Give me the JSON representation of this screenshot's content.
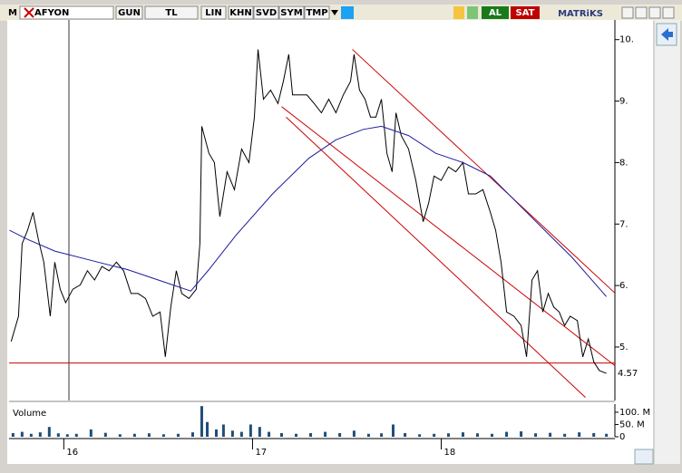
{
  "toolbar": {
    "logo": "M",
    "symbol": "AFYON",
    "buttons": [
      "GUN",
      "TL",
      "LIN",
      "KHN",
      "SVD",
      "SYM",
      "TMP"
    ],
    "buy": "AL",
    "sell": "SAT",
    "brand": "MATRiKS"
  },
  "chart_data": [
    {
      "type": "line",
      "series": [
        {
          "color": "#000000",
          "x": [
            2015.721,
            2015.76,
            2015.779,
            2015.808,
            2015.837,
            2015.865,
            2015.894,
            2015.928,
            2015.952,
            2015.981,
            2016.01,
            2016.048,
            2016.087,
            2016.125,
            2016.163,
            2016.202,
            2016.24,
            2016.279,
            2016.317,
            2016.356,
            2016.394,
            2016.433,
            2016.471,
            2016.51,
            2016.538,
            2016.567,
            2016.596,
            2016.625,
            2016.663,
            2016.702,
            2016.721,
            2016.731,
            2016.769,
            2016.798,
            2016.827,
            2016.865,
            2016.904,
            2016.942,
            2016.981,
            2017.01,
            2017.029,
            2017.058,
            2017.096,
            2017.135,
            2017.163,
            2017.192,
            2017.212,
            2017.25,
            2017.288,
            2017.327,
            2017.365,
            2017.404,
            2017.442,
            2017.481,
            2017.519,
            2017.538,
            2017.567,
            2017.596,
            2017.625,
            2017.654,
            2017.683,
            2017.712,
            2017.74,
            2017.76,
            2017.788,
            2017.827,
            2017.865,
            2017.904,
            2017.933,
            2017.962,
            2018.0,
            2018.038,
            2018.077,
            2018.115,
            2018.144,
            2018.183,
            2018.221,
            2018.26,
            2018.288,
            2018.317,
            2018.346,
            2018.385,
            2018.423,
            2018.452,
            2018.481,
            2018.51,
            2018.538,
            2018.567,
            2018.596,
            2018.625,
            2018.654,
            2018.683,
            2018.721,
            2018.75,
            2018.779,
            2018.808,
            2018.837,
            2018.875
          ],
          "values": [
            5.09,
            5.5,
            6.68,
            6.9,
            7.19,
            6.75,
            6.38,
            5.5,
            6.38,
            5.94,
            5.72,
            5.94,
            6.01,
            6.24,
            6.09,
            6.31,
            6.24,
            6.38,
            6.24,
            5.87,
            5.87,
            5.79,
            5.5,
            5.57,
            4.84,
            5.65,
            6.24,
            5.87,
            5.79,
            5.94,
            6.68,
            8.59,
            8.15,
            8.0,
            7.12,
            7.85,
            7.56,
            8.22,
            8.0,
            8.74,
            9.84,
            9.03,
            9.18,
            8.96,
            9.32,
            9.76,
            9.1,
            9.1,
            9.1,
            8.96,
            8.81,
            9.03,
            8.81,
            9.1,
            9.32,
            9.76,
            9.18,
            9.03,
            8.74,
            8.74,
            9.03,
            8.15,
            7.85,
            8.81,
            8.44,
            8.22,
            7.71,
            7.04,
            7.34,
            7.78,
            7.71,
            7.93,
            7.85,
            8.0,
            7.49,
            7.49,
            7.56,
            7.19,
            6.9,
            6.38,
            5.57,
            5.5,
            5.35,
            4.84,
            6.09,
            6.24,
            5.57,
            5.87,
            5.65,
            5.57,
            5.35,
            5.5,
            5.43,
            4.84,
            5.13,
            4.76,
            4.62,
            4.57
          ]
        },
        {
          "color": "#1c1c9c",
          "x": [
            2015.712,
            2015.808,
            2015.952,
            2016.144,
            2016.337,
            2016.529,
            2016.673,
            2016.769,
            2016.913,
            2017.106,
            2017.298,
            2017.442,
            2017.587,
            2017.683,
            2017.827,
            2017.971,
            2018.115,
            2018.26,
            2018.404,
            2018.548,
            2018.692,
            2018.875
          ],
          "values": [
            6.9,
            6.75,
            6.56,
            6.41,
            6.26,
            6.06,
            5.91,
            6.26,
            6.82,
            7.49,
            8.07,
            8.37,
            8.54,
            8.59,
            8.44,
            8.15,
            8.0,
            7.78,
            7.34,
            6.9,
            6.46,
            5.82
          ]
        }
      ],
      "trendlines": [
        {
          "color": "#cc0000",
          "x": [
            2017.529,
            2018.923
          ],
          "values": [
            9.84,
            5.87
          ]
        },
        {
          "color": "#cc0000",
          "x": [
            2017.154,
            2018.923
          ],
          "values": [
            8.91,
            4.69
          ]
        },
        {
          "color": "#cc0000",
          "x": [
            2017.178,
            2018.764
          ],
          "values": [
            8.74,
            4.18
          ]
        }
      ],
      "hline": 4.74,
      "hline_color": "#cc0000",
      "last_price": 4.57,
      "xlim": [
        2015.71,
        2018.92
      ],
      "xticks": [
        {
          "value": 2016,
          "label": "16"
        },
        {
          "value": 2017,
          "label": "17"
        },
        {
          "value": 2018,
          "label": "18"
        }
      ],
      "ylim": [
        4.13,
        10.32
      ],
      "yticks": [
        {
          "value": 5,
          "label": "5."
        },
        {
          "value": 6,
          "label": "6."
        },
        {
          "value": 7,
          "label": "7."
        },
        {
          "value": 8,
          "label": "8."
        },
        {
          "value": 9,
          "label": "9."
        },
        {
          "value": 10,
          "label": "10."
        }
      ]
    },
    {
      "type": "bar",
      "title": "Volume",
      "color": "#1f4e79",
      "x": [
        2015.731,
        2015.779,
        2015.827,
        2015.875,
        2015.923,
        2015.971,
        2016.019,
        2016.067,
        2016.144,
        2016.221,
        2016.298,
        2016.375,
        2016.452,
        2016.529,
        2016.606,
        2016.683,
        2016.731,
        2016.76,
        2016.808,
        2016.846,
        2016.894,
        2016.942,
        2016.99,
        2017.038,
        2017.087,
        2017.154,
        2017.231,
        2017.308,
        2017.385,
        2017.462,
        2017.538,
        2017.615,
        2017.683,
        2017.745,
        2017.808,
        2017.885,
        2017.962,
        2018.038,
        2018.115,
        2018.192,
        2018.269,
        2018.346,
        2018.423,
        2018.5,
        2018.577,
        2018.654,
        2018.731,
        2018.808,
        2018.875
      ],
      "values": [
        15000000,
        20000000,
        12000000,
        18000000,
        40000000,
        14000000,
        10000000,
        12000000,
        30000000,
        16000000,
        10000000,
        12000000,
        14000000,
        10000000,
        12000000,
        18000000,
        125000000,
        60000000,
        30000000,
        50000000,
        25000000,
        20000000,
        50000000,
        40000000,
        20000000,
        15000000,
        12000000,
        15000000,
        20000000,
        15000000,
        25000000,
        12000000,
        14000000,
        50000000,
        15000000,
        10000000,
        12000000,
        14000000,
        18000000,
        14000000,
        12000000,
        20000000,
        22000000,
        14000000,
        16000000,
        12000000,
        18000000,
        15000000,
        12000000
      ],
      "xlim": [
        2015.71,
        2018.92
      ],
      "ylim": [
        0,
        133000000
      ],
      "yticks": [
        0,
        {
          "value": 50000000,
          "label": "50. M"
        },
        {
          "value": 100000000,
          "label": "100. M"
        }
      ]
    }
  ]
}
